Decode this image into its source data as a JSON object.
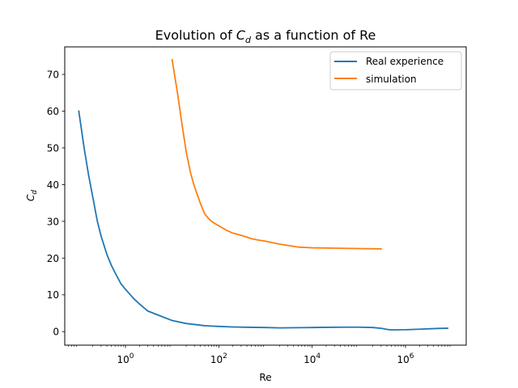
{
  "chart_data": {
    "type": "line",
    "title_parts": {
      "prefix": "Evolution of ",
      "symbol": "C",
      "subscript": "d",
      "suffix": " as a function of Re"
    },
    "xlabel": "Re",
    "ylabel_parts": {
      "symbol": "C",
      "subscript": "d"
    },
    "xscale": "log",
    "xlim": [
      0.05,
      20000000
    ],
    "ylim": [
      -3.7,
      77.5
    ],
    "x_ticks": [
      {
        "value": 1,
        "base": "10",
        "exp": "0"
      },
      {
        "value": 100,
        "base": "10",
        "exp": "2"
      },
      {
        "value": 10000,
        "base": "10",
        "exp": "4"
      },
      {
        "value": 1000000,
        "base": "10",
        "exp": "6"
      }
    ],
    "y_ticks": [
      0,
      10,
      20,
      30,
      40,
      50,
      60,
      70
    ],
    "grid": false,
    "legend_position": "top-right",
    "series": [
      {
        "name": "Real experience",
        "color": "#1f77b4",
        "x": [
          0.1,
          0.13,
          0.16,
          0.2,
          0.25,
          0.3,
          0.4,
          0.5,
          0.6,
          0.8,
          1,
          1.5,
          2,
          3,
          5,
          10,
          20,
          50,
          100,
          200,
          500,
          1000,
          2000,
          5000,
          10000,
          20000,
          50000,
          100000,
          200000,
          300000,
          400000,
          500000,
          1000000,
          2000000,
          5000000,
          8000000
        ],
        "y": [
          60,
          50,
          43,
          36.5,
          30,
          26,
          21,
          18,
          16,
          13,
          11.5,
          9,
          7.5,
          5.6,
          4.5,
          3,
          2.2,
          1.6,
          1.4,
          1.25,
          1.15,
          1.1,
          1.0,
          1.05,
          1.1,
          1.15,
          1.2,
          1.2,
          1.1,
          0.9,
          0.6,
          0.45,
          0.5,
          0.65,
          0.85,
          0.9
        ]
      },
      {
        "name": "simulation",
        "color": "#ff7f0e",
        "x": [
          10,
          13,
          16,
          20,
          25,
          30,
          40,
          50,
          60,
          70,
          80,
          100,
          150,
          200,
          300,
          400,
          500,
          700,
          1000,
          2000,
          5000,
          10000,
          30000,
          100000,
          300000
        ],
        "y": [
          74,
          65,
          57,
          49,
          43,
          39.5,
          35,
          32,
          30.8,
          30,
          29.5,
          28.8,
          27.5,
          26.8,
          26.2,
          25.7,
          25.3,
          24.9,
          24.6,
          23.8,
          23.0,
          22.8,
          22.7,
          22.6,
          22.5
        ]
      }
    ]
  }
}
